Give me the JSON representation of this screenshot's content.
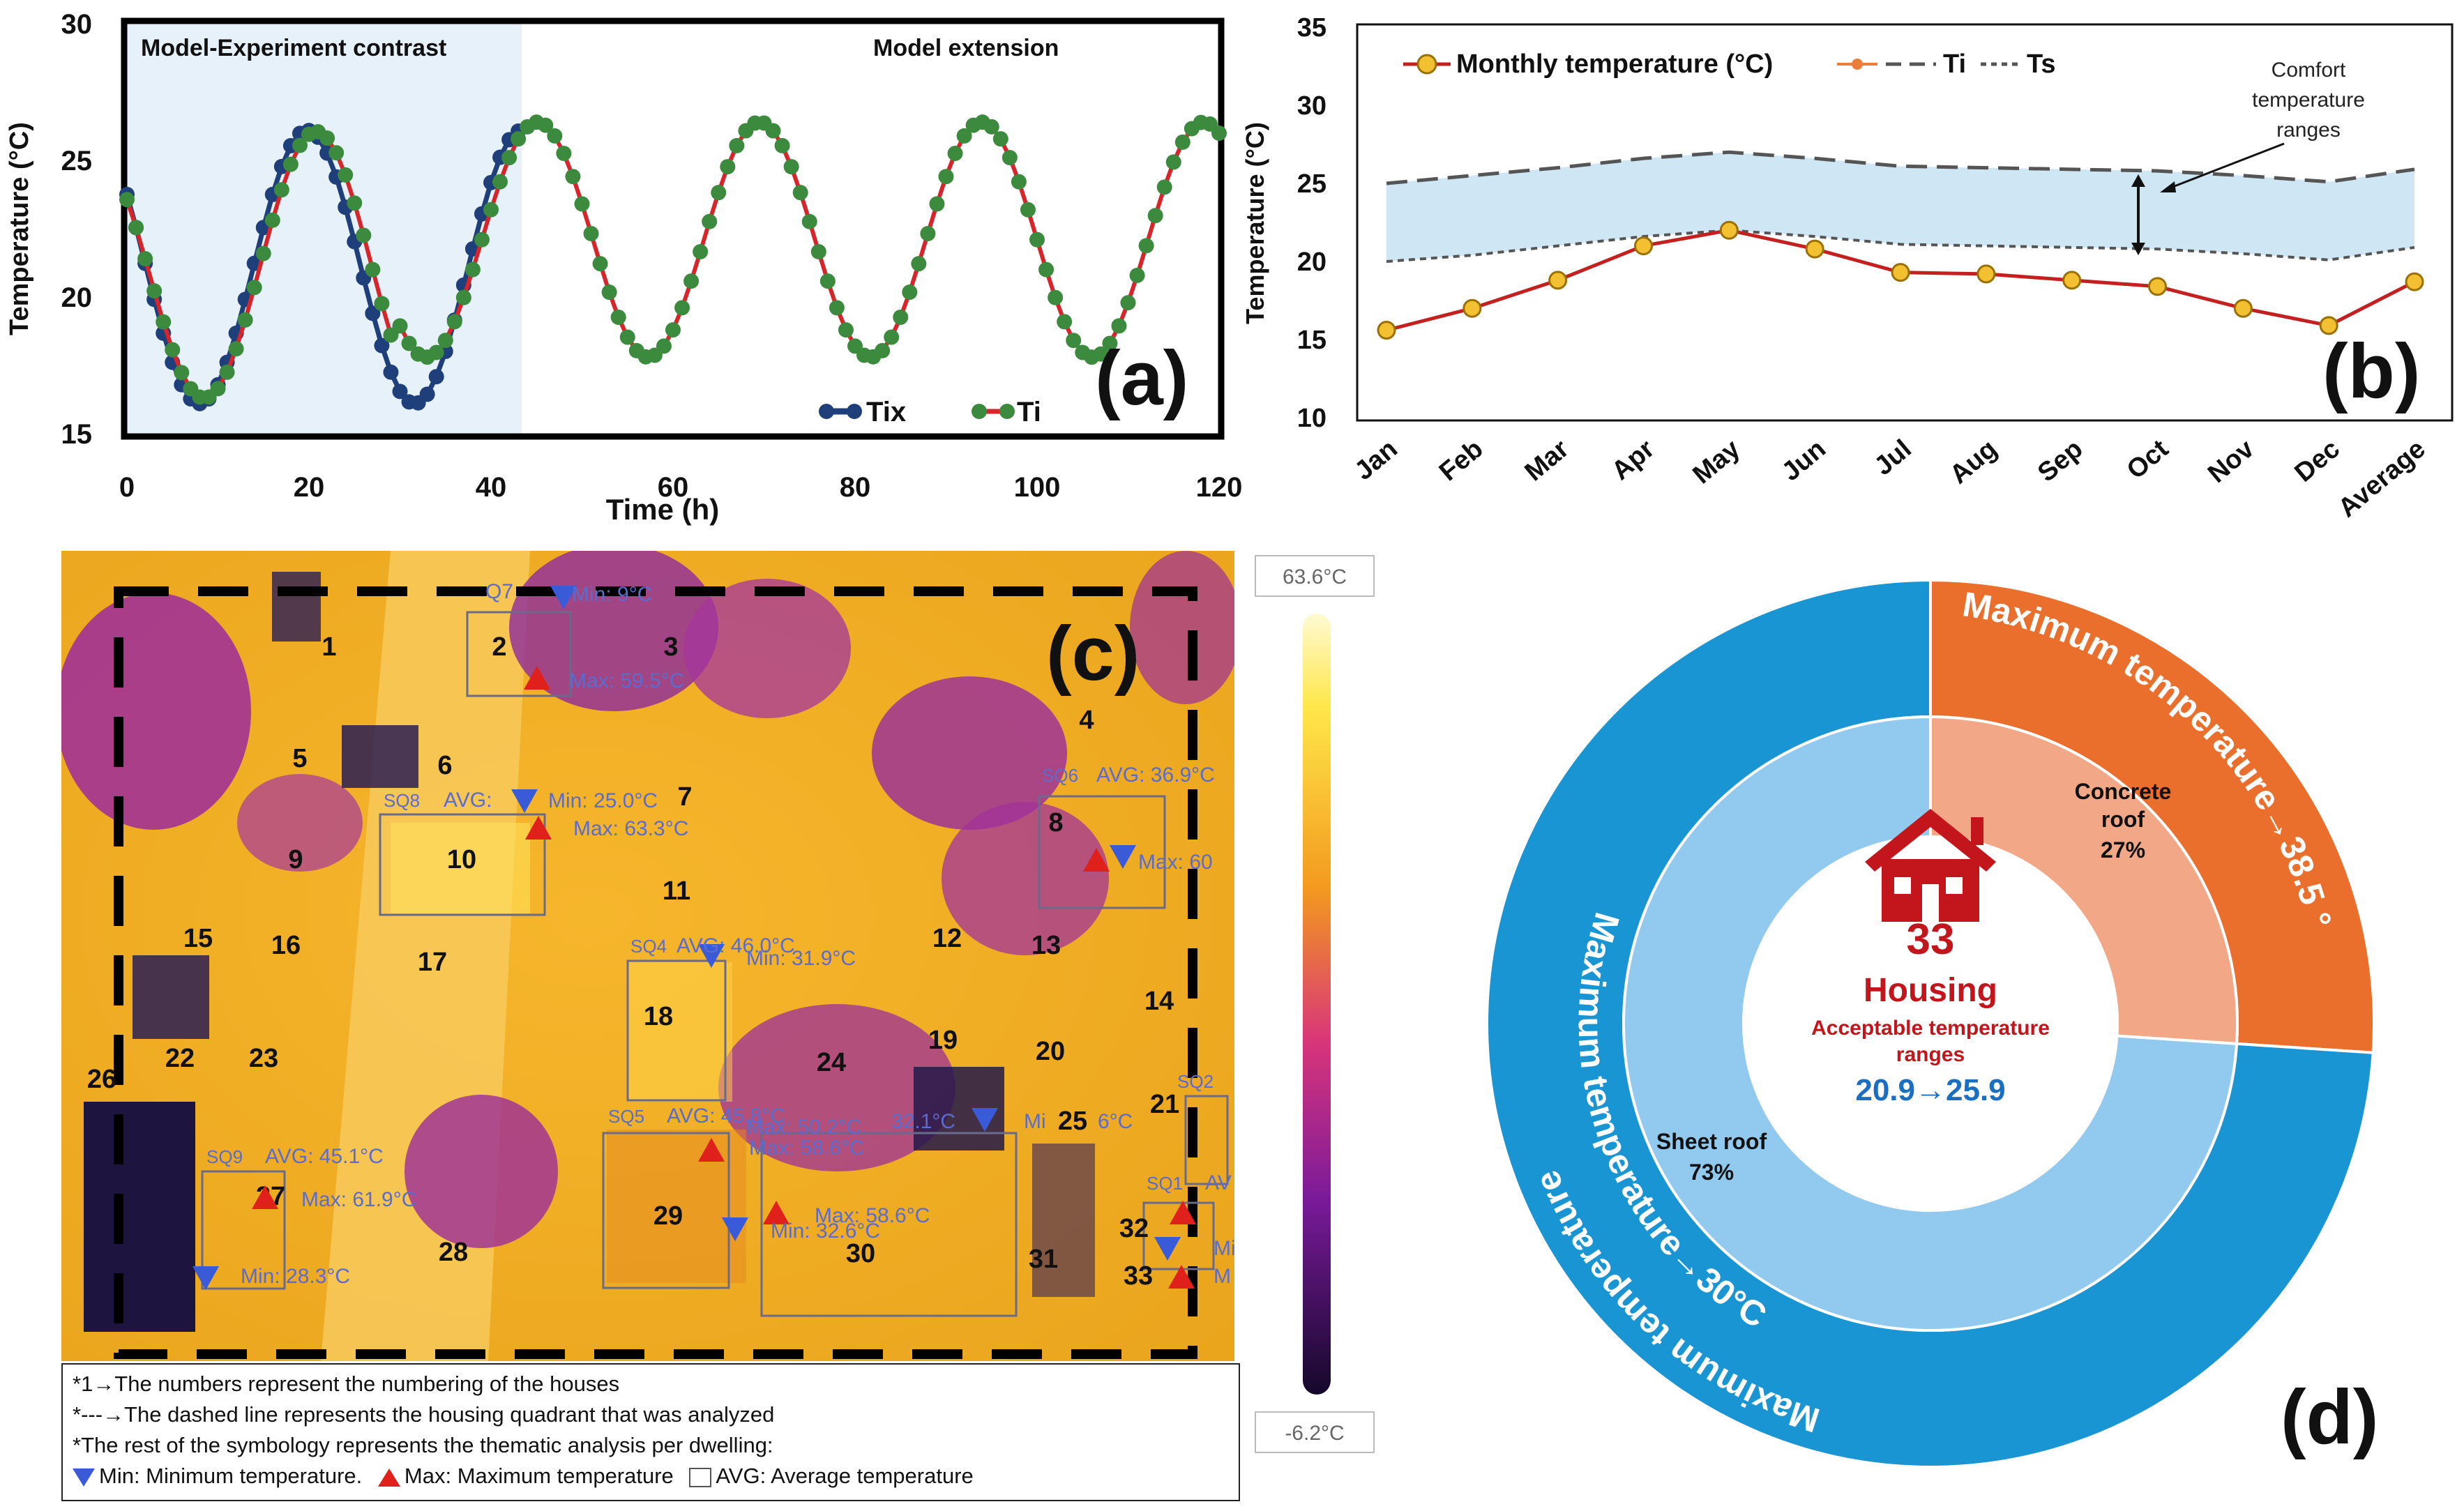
{
  "panel_letters": {
    "a": "(a)",
    "b": "(b)",
    "c": "(c)",
    "d": "(d)"
  },
  "colors": {
    "tix": "#1f3f7a",
    "ti_line": "#d7262b",
    "ti_marker": "#3b8a3e",
    "monthly": "#c52020",
    "monthly_marker": "#f2c030",
    "band": "#cfe6f4",
    "donut_outer": "#1a95d4",
    "donut_inner": "#92c9ee",
    "concrete_outer": "#ea6f2d",
    "concrete_inner": "#f2a787",
    "housing_red": "#c2161c",
    "range_blue": "#1a6fc0"
  },
  "chart_data": [
    {
      "type": "line",
      "panel": "(a)",
      "xlabel": "Time (h)",
      "ylabel": "Temperature (°C)",
      "xlim": [
        0,
        120
      ],
      "ylim": [
        15,
        30
      ],
      "xticks": [
        0,
        20,
        40,
        60,
        80,
        100,
        120
      ],
      "yticks": [
        15,
        20,
        25,
        30
      ],
      "regions": [
        {
          "label": "Model-Experiment contrast",
          "x": [
            0,
            44
          ]
        },
        {
          "label": "Model extension",
          "x": [
            44,
            120
          ]
        }
      ],
      "series": [
        {
          "name": "Tix",
          "x_range": [
            0,
            43
          ],
          "description": "measured interior temperature, sinusoid period 24 h, min 16 at 8 h and 32 h, max 26.2 at 18 h, 24.6 at 43 h"
        },
        {
          "name": "Ti",
          "x_range": [
            0,
            120
          ],
          "description": "model interior temperature, sinusoid period 24.4 h, min 16.3 at 8.5 h then ~17.8 in extension, max ~26.4 at 67, 91, 116 h"
        }
      ],
      "samples_per_hour": 1
    },
    {
      "type": "line",
      "panel": "(b)",
      "ylabel": "Temperature (°C)",
      "ylim": [
        10,
        35
      ],
      "yticks": [
        10,
        15,
        20,
        25,
        30,
        35
      ],
      "categories": [
        "Jan",
        "Feb",
        "Mar",
        "Apr",
        "May",
        "Jun",
        "Jul",
        "Aug",
        "Sep",
        "Oct",
        "Nov",
        "Dec",
        "Average"
      ],
      "series": [
        {
          "name": "Monthly temperature (°C)",
          "values": [
            15.6,
            17.0,
            18.8,
            21.0,
            22.0,
            20.8,
            19.3,
            19.2,
            18.8,
            18.4,
            17.0,
            15.9,
            18.7
          ]
        },
        {
          "name": "Ti",
          "values": [
            25.0,
            25.5,
            26.0,
            26.6,
            27.0,
            26.6,
            26.1,
            26.0,
            25.9,
            25.8,
            25.5,
            25.1,
            25.9
          ]
        },
        {
          "name": "Ts",
          "values": [
            20.0,
            20.4,
            21.0,
            21.6,
            22.0,
            21.6,
            21.1,
            21.0,
            20.9,
            20.8,
            20.5,
            20.1,
            20.9
          ]
        }
      ],
      "legend": [
        "Monthly temperature (°C)",
        "Ti",
        "Ts"
      ],
      "annotation": "Comfort temperature ranges"
    },
    {
      "type": "pie",
      "panel": "(d)",
      "rings": [
        {
          "name": "outer",
          "slices": [
            {
              "label": "Maximum temperature→38.5 °C",
              "value": 27
            },
            {
              "label": "Maximum temperature→30°C",
              "value": 73
            }
          ]
        },
        {
          "name": "inner",
          "slices": [
            {
              "label": "Concrete roof",
              "pct": "27%",
              "value": 27
            },
            {
              "label": "Sheet roof",
              "pct": "73%",
              "value": 73
            }
          ]
        }
      ],
      "center": {
        "count": "33",
        "title": "Housing",
        "subtitle_1": "Acceptable  temperature",
        "subtitle_2": "ranges",
        "range": "20.9→25.9"
      }
    }
  ],
  "thermal": {
    "scale_max": "63.6°C",
    "scale_min": "-6.2°C",
    "houses": [
      "1",
      "2",
      "3",
      "4",
      "5",
      "6",
      "7",
      "8",
      "9",
      "10",
      "11",
      "12",
      "13",
      "14",
      "15",
      "16",
      "17",
      "18",
      "19",
      "20",
      "21",
      "22",
      "23",
      "24",
      "25",
      "26",
      "27",
      "28",
      "29",
      "30",
      "31",
      "32",
      "33"
    ],
    "labels": {
      "sq7_min": "Min: 9°C",
      "sq7_code": "Q7",
      "sq7_max": "Max: 59.5°C",
      "sq8_code": "SQ8",
      "sq8_avg": "AVG:",
      "sq8_min": "Min: 25.0°C",
      "sq8_max": "Max: 63.3°C",
      "sq6_code": "SQ6",
      "sq6_avg": "AVG: 36.9°C",
      "sq6_max": "Max: 60",
      "sq4_code": "SQ4",
      "sq4_avg": "AVG: 46.0°C",
      "sq4_min": "Min: 31.9°C",
      "sq5_code": "SQ5",
      "sq5_avg": "AVG: 45.8°C",
      "sq5_max": "Max: 58.6°C",
      "mid_max": "Max: 50.2°C",
      "mid_min": "32.1°C",
      "sq3_min": "Min: 32.6°C",
      "sq3_max": "Max: 58.6°C",
      "sq9_code": "SQ9",
      "sq9_avg": "AVG: 45.1°C",
      "sq9_max": "Max: 61.9°C",
      "sq9_min": "Min: 28.3°C",
      "sq2_code": "SQ2",
      "sq1_code": "SQ1",
      "sq1_avg": "AV",
      "mi_25": "Mi",
      "mi_25b": "6°C",
      "side_mi": "Mi",
      "side_m": "M"
    },
    "legend": {
      "line1": "*1→The numbers represent the numbering of the houses",
      "line2": "*---→The dashed line represents the housing quadrant that was analyzed",
      "line3": "*The rest of the symbology represents the thematic analysis per dwelling:",
      "min": "Min: Minimum temperature.",
      "max": "Max: Maximum temperature",
      "avg": "AVG: Average temperature"
    }
  }
}
